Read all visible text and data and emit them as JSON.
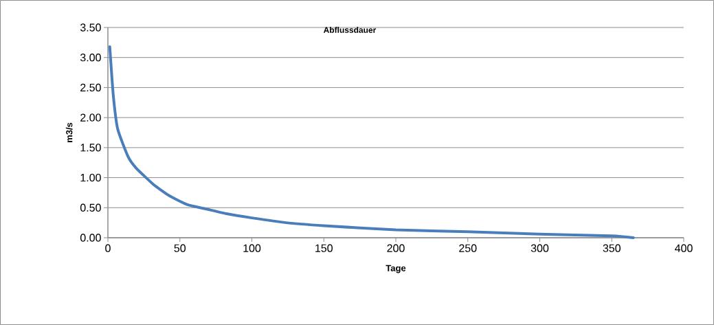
{
  "chart_data": {
    "type": "line",
    "title": "Abflussdauer",
    "xlabel": "Tage",
    "ylabel": "m3/s",
    "x": [
      1.3,
      3.7,
      6.8,
      14,
      19.6,
      31.5,
      42.6,
      55.3,
      68,
      82.4,
      100,
      123.8,
      150,
      200,
      250,
      300,
      350,
      365
    ],
    "series": [
      {
        "color": "#4a7ebb",
        "values": [
          3.18,
          2.38,
          1.81,
          1.35,
          1.16,
          0.89,
          0.7,
          0.55,
          0.48,
          0.4,
          0.33,
          0.25,
          0.2,
          0.13,
          0.1,
          0.06,
          0.03,
          0.0
        ]
      }
    ],
    "xlim": [
      0,
      400
    ],
    "xticks": [
      0,
      50,
      100,
      150,
      200,
      250,
      300,
      350,
      400
    ],
    "ylim": [
      0,
      3.5
    ],
    "yticks": [
      {
        "value": 0,
        "label": "0.00"
      },
      {
        "value": 0.5,
        "label": "0.50"
      },
      {
        "value": 1,
        "label": "1.00"
      },
      {
        "value": 1.5,
        "label": "1.50"
      },
      {
        "value": 2,
        "label": "2.00"
      },
      {
        "value": 2.5,
        "label": "2.50"
      },
      {
        "value": 3,
        "label": "3.00"
      },
      {
        "value": 3.5,
        "label": "3.50"
      }
    ],
    "grid": "y",
    "marker": "none",
    "line_style": "solid"
  }
}
